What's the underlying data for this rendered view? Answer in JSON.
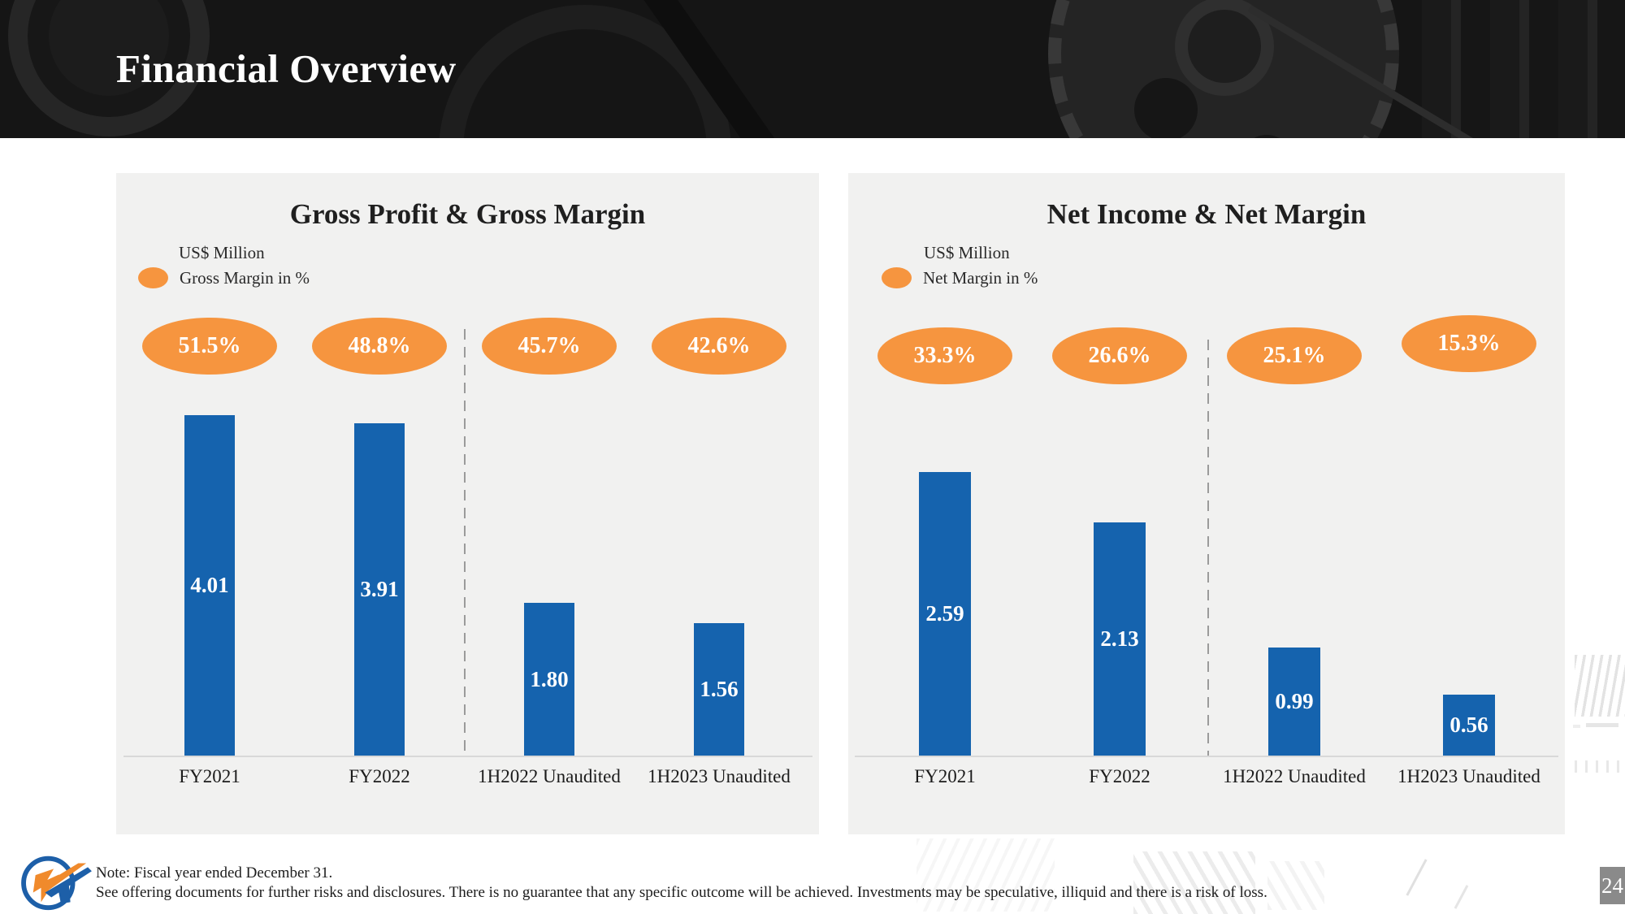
{
  "slide_title": "Financial Overview",
  "page_number": "24",
  "footer": {
    "note_line1": "Note: Fiscal year ended December 31.",
    "note_line2": "See offering documents for further risks and disclosures. There is no guarantee that any specific outcome will be achieved. Investments may be speculative, illiquid and there is a risk of loss."
  },
  "colors": {
    "bar_blue": "#1563AE",
    "oval_orange": "#F6953F",
    "panel_bg": "#F1F1F0",
    "banner_bg": "#151515",
    "badge_bg": "#8A8A8A",
    "axis_line": "#D8D8D8",
    "separator": "#9B9B9B"
  },
  "chart_data": [
    {
      "type": "bar",
      "title": "Gross Profit & Gross Margin",
      "unit_label": "US$ Million",
      "categories": [
        "FY2021",
        "FY2022",
        "1H2022 Unaudited",
        "1H2023 Unaudited"
      ],
      "series": [
        {
          "name": "Gross Profit",
          "unit": "US$ Million",
          "values": [
            4.01,
            3.91,
            1.8,
            1.56
          ],
          "labels": [
            "4.01",
            "3.91",
            "1.80",
            "1.56"
          ]
        },
        {
          "name": "Gross Margin in %",
          "values": [
            51.5,
            48.8,
            45.7,
            42.6
          ],
          "labels": [
            "51.5%",
            "48.8%",
            "45.7%",
            "42.6%"
          ]
        }
      ],
      "separator_between": [
        "FY2022",
        "1H2022 Unaudited"
      ],
      "ylim": [
        0,
        4.3
      ],
      "grid": false,
      "legend_position": "top-left"
    },
    {
      "type": "bar",
      "title": "Net Income & Net Margin",
      "unit_label": "US$ Million",
      "categories": [
        "FY2021",
        "FY2022",
        "1H2022 Unaudited",
        "1H2023 Unaudited"
      ],
      "series": [
        {
          "name": "Net Income",
          "unit": "US$ Million",
          "values": [
            2.59,
            2.13,
            0.99,
            0.56
          ],
          "labels": [
            "2.59",
            "2.13",
            "0.99",
            "0.56"
          ]
        },
        {
          "name": "Net Margin in %",
          "values": [
            33.3,
            26.6,
            25.1,
            15.3
          ],
          "labels": [
            "33.3%",
            "26.6%",
            "25.1%",
            "15.3%"
          ]
        }
      ],
      "separator_between": [
        "FY2022",
        "1H2022 Unaudited"
      ],
      "ylim": [
        0,
        3.4
      ],
      "grid": false,
      "legend_position": "top-left"
    }
  ]
}
